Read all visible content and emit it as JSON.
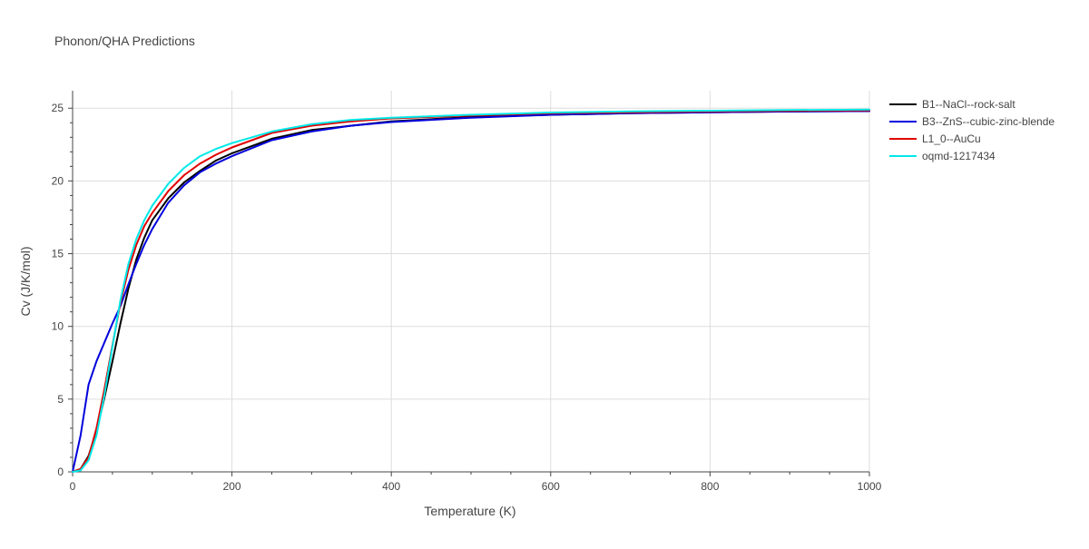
{
  "chart_data": {
    "type": "line",
    "title": "Phonon/QHA Predictions",
    "xlabel": "Temperature (K)",
    "ylabel": "Cv (J/K/mol)",
    "xlim": [
      0,
      1000
    ],
    "ylim": [
      0,
      26.2
    ],
    "xticks": [
      0,
      200,
      400,
      600,
      800,
      1000
    ],
    "yticks": [
      0,
      5,
      10,
      15,
      20,
      25
    ],
    "grid": true,
    "legend_position": "top-right",
    "series": [
      {
        "name": "B1--NaCl--rock-salt",
        "color": "#000000",
        "x": [
          0,
          10,
          20,
          30,
          40,
          50,
          60,
          70,
          80,
          90,
          100,
          120,
          140,
          160,
          180,
          200,
          250,
          300,
          350,
          400,
          500,
          600,
          700,
          800,
          900,
          1000
        ],
        "y": [
          0,
          0.2,
          1.1,
          2.8,
          5.1,
          7.6,
          10.2,
          12.6,
          14.6,
          16.1,
          17.3,
          18.8,
          19.9,
          20.7,
          21.4,
          21.9,
          22.9,
          23.5,
          23.8,
          24.1,
          24.4,
          24.55,
          24.65,
          24.72,
          24.77,
          24.8
        ]
      },
      {
        "name": "B3--ZnS--cubic-zinc-blende",
        "color": "#0000dd",
        "x": [
          0,
          10,
          20,
          30,
          40,
          50,
          60,
          70,
          80,
          90,
          100,
          120,
          140,
          160,
          180,
          200,
          250,
          300,
          350,
          400,
          500,
          600,
          700,
          800,
          900,
          1000
        ],
        "y": [
          0,
          2.5,
          6.0,
          7.6,
          8.9,
          10.2,
          11.4,
          12.9,
          14.3,
          15.6,
          16.7,
          18.5,
          19.7,
          20.6,
          21.2,
          21.7,
          22.8,
          23.4,
          23.8,
          24.05,
          24.35,
          24.55,
          24.65,
          24.72,
          24.77,
          24.8
        ]
      },
      {
        "name": "L1_0--AuCu",
        "color": "#e00000",
        "x": [
          0,
          10,
          20,
          30,
          40,
          50,
          60,
          70,
          80,
          90,
          100,
          120,
          140,
          160,
          180,
          200,
          250,
          300,
          350,
          400,
          500,
          600,
          700,
          800,
          900,
          1000
        ],
        "y": [
          0,
          0.2,
          1.0,
          3.0,
          5.7,
          8.7,
          11.6,
          13.9,
          15.6,
          16.9,
          17.8,
          19.3,
          20.4,
          21.2,
          21.8,
          22.3,
          23.3,
          23.8,
          24.1,
          24.3,
          24.5,
          24.65,
          24.72,
          24.78,
          24.82,
          24.85
        ]
      },
      {
        "name": "oqmd-1217434",
        "color": "#00e8e8",
        "x": [
          0,
          10,
          20,
          30,
          40,
          50,
          60,
          70,
          80,
          90,
          100,
          120,
          140,
          160,
          180,
          200,
          250,
          300,
          350,
          400,
          500,
          600,
          700,
          800,
          900,
          1000
        ],
        "y": [
          0,
          0.1,
          0.8,
          2.5,
          5.3,
          8.6,
          11.8,
          14.3,
          16.0,
          17.3,
          18.3,
          19.8,
          20.9,
          21.7,
          22.2,
          22.6,
          23.4,
          23.9,
          24.2,
          24.35,
          24.55,
          24.7,
          24.78,
          24.83,
          24.87,
          24.9
        ]
      }
    ]
  }
}
